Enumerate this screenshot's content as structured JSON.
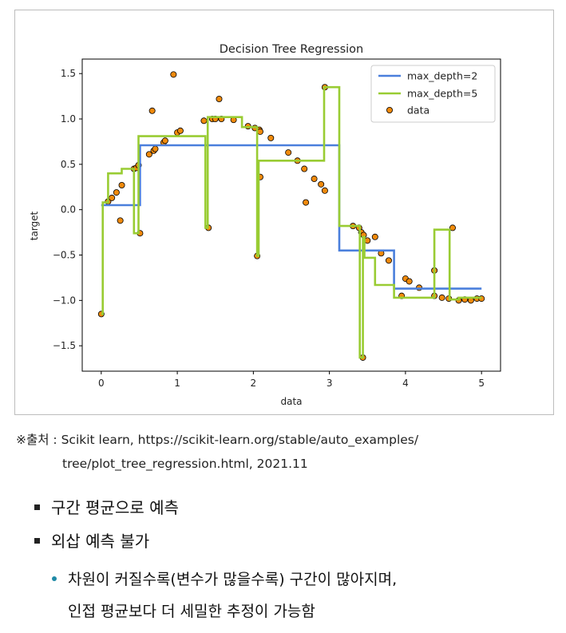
{
  "chart_data": {
    "type": "line",
    "title": "Decision Tree Regression",
    "xlabel": "data",
    "ylabel": "target",
    "xlim": [
      -0.25,
      5.25
    ],
    "ylim": [
      -1.78,
      1.66
    ],
    "xticks": [
      0,
      1,
      2,
      3,
      4,
      5
    ],
    "xtick_labels": [
      "0",
      "1",
      "2",
      "3",
      "4",
      "5"
    ],
    "yticks": [
      -1.5,
      -1.0,
      -0.5,
      0.0,
      0.5,
      1.0,
      1.5
    ],
    "ytick_labels": [
      "−1.5",
      "−1.0",
      "−0.5",
      "0.0",
      "0.5",
      "1.0",
      "1.5"
    ],
    "legend_position": "top-right",
    "series": [
      {
        "name": "max_depth=2",
        "kind": "step",
        "color": "#4a7fdc",
        "x": [
          0.0,
          0.51,
          0.51,
          3.13,
          3.13,
          3.85,
          3.85,
          5.0
        ],
        "y": [
          0.05,
          0.05,
          0.71,
          0.71,
          -0.45,
          -0.45,
          -0.87,
          -0.87
        ]
      },
      {
        "name": "max_depth=5",
        "kind": "step",
        "color": "#99cc33",
        "x": [
          0.0,
          0.02,
          0.02,
          0.09,
          0.09,
          0.27,
          0.27,
          0.43,
          0.43,
          0.49,
          0.49,
          0.51,
          0.51,
          0.53,
          0.53,
          1.37,
          1.37,
          1.4,
          1.4,
          1.43,
          1.43,
          1.85,
          1.85,
          2.05,
          2.05,
          2.07,
          2.07,
          2.09,
          2.09,
          2.93,
          2.93,
          3.13,
          3.13,
          3.4,
          3.4,
          3.44,
          3.44,
          3.46,
          3.46,
          3.6,
          3.6,
          3.85,
          3.85,
          4.38,
          4.38,
          4.58,
          4.58,
          4.62,
          4.62,
          4.7,
          4.7,
          5.0
        ],
        "y": [
          -1.15,
          -1.15,
          0.08,
          0.08,
          0.4,
          0.4,
          0.45,
          0.45,
          -0.26,
          -0.26,
          0.81,
          0.81,
          0.81,
          0.81,
          0.81,
          0.81,
          -0.2,
          -0.2,
          1.02,
          1.02,
          1.02,
          1.02,
          0.91,
          0.91,
          -0.51,
          -0.51,
          0.54,
          0.54,
          0.54,
          0.54,
          1.35,
          1.35,
          -0.18,
          -0.18,
          -1.63,
          -1.63,
          -0.3,
          -0.3,
          -0.53,
          -0.53,
          -0.83,
          -0.83,
          -0.97,
          -0.97,
          -0.22,
          -0.22,
          -0.99,
          -0.99,
          -0.99,
          -0.99,
          -0.97,
          -0.97
        ]
      },
      {
        "name": "data",
        "kind": "scatter",
        "color": "#f08a0c",
        "x": [
          0.0,
          0.09,
          0.14,
          0.2,
          0.25,
          0.27,
          0.43,
          0.46,
          0.49,
          0.51,
          0.63,
          0.67,
          0.69,
          0.71,
          0.82,
          0.84,
          0.95,
          1.0,
          1.04,
          1.35,
          1.41,
          1.46,
          1.5,
          1.55,
          1.58,
          1.74,
          1.93,
          2.02,
          2.05,
          2.08,
          2.09,
          2.09,
          2.23,
          2.46,
          2.58,
          2.67,
          2.69,
          2.8,
          2.89,
          2.94,
          2.94,
          3.31,
          3.39,
          3.42,
          3.44,
          3.45,
          3.5,
          3.6,
          3.68,
          3.78,
          3.95,
          4.0,
          4.05,
          4.18,
          4.38,
          4.38,
          4.48,
          4.57,
          4.62,
          4.7,
          4.78,
          4.86,
          4.94,
          5.0
        ],
        "y": [
          -1.15,
          0.09,
          0.13,
          0.19,
          -0.12,
          0.27,
          0.45,
          0.46,
          0.49,
          -0.26,
          0.61,
          1.09,
          0.65,
          0.67,
          0.74,
          0.76,
          1.49,
          0.85,
          0.87,
          0.98,
          -0.2,
          1.0,
          1.0,
          1.22,
          1.0,
          0.99,
          0.92,
          0.9,
          -0.51,
          0.88,
          0.86,
          0.36,
          0.79,
          0.63,
          0.54,
          0.45,
          0.08,
          0.34,
          0.28,
          0.21,
          1.35,
          -0.18,
          -0.2,
          -0.25,
          -1.63,
          -0.28,
          -0.34,
          -0.3,
          -0.48,
          -0.56,
          -0.95,
          -0.76,
          -0.79,
          -0.86,
          -0.67,
          -0.95,
          -0.97,
          -0.98,
          -0.2,
          -1.0,
          -0.99,
          -1.0,
          -0.98,
          -0.98
        ]
      }
    ]
  },
  "caption": {
    "line1": "※출처 : Scikit learn, https://scikit-learn.org/stable/auto_examples/",
    "line2": "tree/plot_tree_regression.html, 2021.11"
  },
  "bullets": [
    "구간 평균으로 예측",
    "외삽 예측 불가"
  ],
  "sub_bullet": {
    "line1": "차원이 커질수록(변수가 많을수록) 구간이 많아지며,",
    "line2": "인접 평균보다 더 세밀한 추정이 가능함"
  }
}
